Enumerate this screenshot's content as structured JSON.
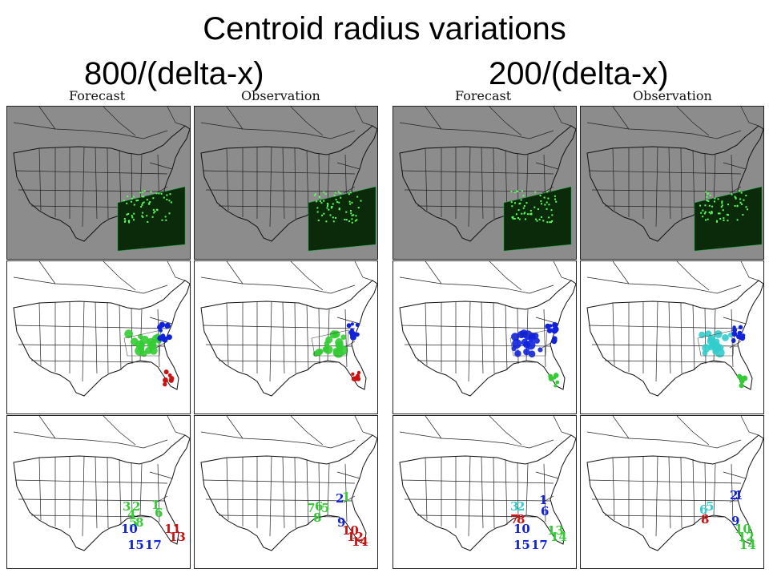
{
  "title": "Centroid radius variations",
  "subtitles": {
    "left": "800/(delta-x)",
    "right": "200/(delta-x)"
  },
  "column_labels": [
    "Forecast",
    "Observation",
    "Forecast",
    "Observation"
  ],
  "colors": {
    "background_gray": "#8c8c8c",
    "precip_dark_green": "#0a2a0a",
    "precip_light_green": "#5cff5c",
    "green": "#33cc33",
    "blue": "#1122dd",
    "red": "#cc1111",
    "cyan": "#33cccc"
  },
  "object_labels": {
    "left_forecast": [
      {
        "text": "3",
        "color": "green"
      },
      {
        "text": "2",
        "color": "green"
      },
      {
        "text": "4",
        "color": "green"
      },
      {
        "text": "1",
        "color": "green"
      },
      {
        "text": "6",
        "color": "green"
      },
      {
        "text": "5",
        "color": "green"
      },
      {
        "text": "8",
        "color": "green"
      },
      {
        "text": "10",
        "color": "blue"
      },
      {
        "text": "11",
        "color": "red"
      },
      {
        "text": "13",
        "color": "red"
      },
      {
        "text": "15",
        "color": "blue"
      },
      {
        "text": "17",
        "color": "blue"
      }
    ],
    "left_observation": [
      {
        "text": "7",
        "color": "green"
      },
      {
        "text": "6",
        "color": "green"
      },
      {
        "text": "5",
        "color": "green"
      },
      {
        "text": "8",
        "color": "green"
      },
      {
        "text": "2",
        "color": "blue"
      },
      {
        "text": "1",
        "color": "green"
      },
      {
        "text": "9",
        "color": "blue"
      },
      {
        "text": "10",
        "color": "red"
      },
      {
        "text": "12",
        "color": "red"
      },
      {
        "text": "14",
        "color": "red"
      }
    ],
    "right_forecast": [
      {
        "text": "3",
        "color": "cyan"
      },
      {
        "text": "2",
        "color": "cyan"
      },
      {
        "text": "1",
        "color": "blue"
      },
      {
        "text": "6",
        "color": "blue"
      },
      {
        "text": "7",
        "color": "red"
      },
      {
        "text": "8",
        "color": "red"
      },
      {
        "text": "10",
        "color": "blue"
      },
      {
        "text": "13",
        "color": "green"
      },
      {
        "text": "14",
        "color": "green"
      },
      {
        "text": "15",
        "color": "blue"
      },
      {
        "text": "17",
        "color": "blue"
      }
    ],
    "right_observation": [
      {
        "text": "6",
        "color": "cyan"
      },
      {
        "text": "5",
        "color": "cyan"
      },
      {
        "text": "8",
        "color": "red"
      },
      {
        "text": "2",
        "color": "blue"
      },
      {
        "text": "1",
        "color": "blue"
      },
      {
        "text": "9",
        "color": "blue"
      },
      {
        "text": "10",
        "color": "green"
      },
      {
        "text": "12",
        "color": "green"
      },
      {
        "text": "14",
        "color": "green"
      }
    ]
  }
}
